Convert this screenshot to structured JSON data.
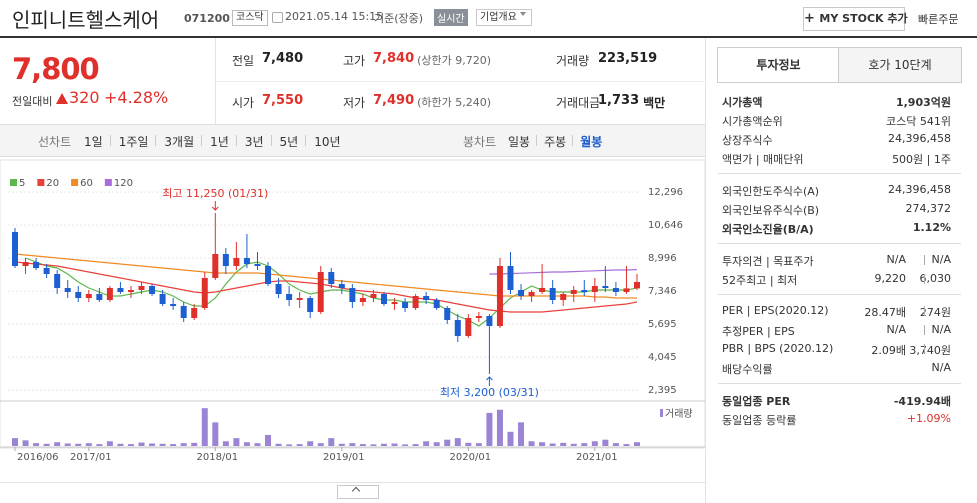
{
  "header": {
    "name": "인피니트헬스케어",
    "code": "071200",
    "market": "코스닥",
    "datetime": "2021.05.14 15:15",
    "basis": "기준(장중)",
    "realtime": "실시간",
    "company_info": "기업개요",
    "my_stock": "MY STOCK 추가",
    "quick_order": "빠른주문"
  },
  "quote": {
    "price": "7,800",
    "change_label": "전일대비",
    "change": "320",
    "change_rate": "+4.28%"
  },
  "summary": [
    {
      "label": "전일",
      "value": "7,480"
    },
    {
      "label": "고가",
      "value": "7,840",
      "note": "(상한가 9,720)"
    },
    {
      "label": "거래량",
      "value": "223,519"
    },
    {
      "label": "시가",
      "value": "7,550"
    },
    {
      "label": "저가",
      "value": "7,490",
      "note": "(하한가 5,240)"
    },
    {
      "label": "거래대금",
      "value": "1,733",
      "unit": "백만"
    }
  ],
  "toolbar": {
    "line_label": "선차트",
    "line_periods": [
      "1일",
      "1주일",
      "3개월",
      "1년",
      "3년",
      "5년",
      "10년"
    ],
    "candle_label": "봉차트",
    "candle_periods": [
      "일봉",
      "주봉",
      "월봉"
    ]
  },
  "side": {
    "tabs": [
      "투자정보",
      "호가 10단계"
    ],
    "groups": [
      [
        {
          "label": "시가총액",
          "values": [
            "1,903억원"
          ]
        },
        {
          "label": "시가총액순위",
          "values": [
            "코스닥 541위"
          ]
        },
        {
          "label": "상장주식수",
          "values": [
            "24,396,458"
          ]
        },
        {
          "label": "액면가 | 매매단위",
          "values": [
            "500원 | 1주"
          ]
        }
      ],
      [
        {
          "label": "외국인한도주식수(A)",
          "values": [
            "24,396,458"
          ]
        },
        {
          "label": "외국인보유주식수(B)",
          "values": [
            "274,372"
          ]
        },
        {
          "label": "외국인소진율(B/A)",
          "values": [
            "1.12%"
          ]
        }
      ],
      [
        {
          "label": "투자의견 | 목표주가",
          "values": [
            "N/A",
            "N/A"
          ]
        },
        {
          "label": "52주최고 | 최저",
          "values": [
            "9,220",
            "6,030"
          ]
        }
      ],
      [
        {
          "label": "PER | EPS(2020.12)",
          "values": [
            "28.47배",
            "274원"
          ]
        },
        {
          "label": "추정PER | EPS",
          "values": [
            "N/A",
            "N/A"
          ]
        },
        {
          "label": "PBR | BPS (2020.12)",
          "values": [
            "2.09배",
            "3,740원"
          ]
        },
        {
          "label": "배당수익률",
          "values": [
            "N/A"
          ]
        }
      ],
      [
        {
          "label": "동일업종 PER",
          "values": [
            "-419.94배"
          ]
        },
        {
          "label": "동일업종 등락률",
          "values": [
            "+1.09%"
          ]
        }
      ]
    ]
  },
  "chart_data": {
    "type": "candlestick",
    "categories": [
      "2016/06",
      null,
      null,
      null,
      null,
      null,
      null,
      "2017/01",
      null,
      null,
      null,
      null,
      null,
      null,
      null,
      null,
      null,
      null,
      null,
      "2018/01",
      null,
      null,
      null,
      null,
      null,
      null,
      null,
      null,
      null,
      null,
      null,
      "2019/01",
      null,
      null,
      null,
      null,
      null,
      null,
      null,
      null,
      null,
      null,
      null,
      "2020/01",
      null,
      null,
      null,
      null,
      null,
      null,
      null,
      null,
      null,
      null,
      null,
      "2021/01",
      null,
      null,
      null,
      null
    ],
    "open": [
      10300,
      8600,
      8800,
      8500,
      8200,
      7500,
      7300,
      7000,
      7200,
      6900,
      7500,
      7300,
      7400,
      7600,
      7200,
      6700,
      6600,
      6000,
      6500,
      8000,
      9200,
      8600,
      9000,
      8700,
      8600,
      7700,
      7200,
      6900,
      7000,
      6300,
      8300,
      7700,
      7500,
      6800,
      7000,
      7200,
      6700,
      6800,
      6500,
      7100,
      6900,
      6500,
      5900,
      5100,
      6000,
      6100,
      5600,
      8600,
      7400,
      7100,
      7300,
      7500,
      6900,
      7200,
      7400,
      7300,
      7600,
      7500,
      7300,
      7480
    ],
    "high": [
      10500,
      9000,
      9000,
      8700,
      8400,
      7900,
      7600,
      7400,
      7500,
      7600,
      7800,
      7600,
      7800,
      7700,
      7400,
      7000,
      6800,
      6700,
      8300,
      11250,
      9500,
      9800,
      10200,
      9300,
      8800,
      8000,
      7600,
      7300,
      7100,
      8600,
      8500,
      7900,
      7700,
      7200,
      7400,
      7300,
      7000,
      7000,
      7200,
      7300,
      7000,
      6600,
      6200,
      6200,
      6300,
      6200,
      9000,
      9300,
      7700,
      7400,
      8700,
      7900,
      7300,
      7600,
      7900,
      8000,
      8600,
      7800,
      8600,
      8200
    ],
    "low": [
      8500,
      8200,
      8400,
      8000,
      7200,
      7000,
      6800,
      6800,
      6800,
      6800,
      7200,
      7000,
      7200,
      7100,
      6600,
      6400,
      5800,
      5900,
      6400,
      7900,
      8200,
      8400,
      8500,
      8400,
      7600,
      7000,
      6600,
      6500,
      6000,
      6200,
      7500,
      7200,
      6500,
      6600,
      6800,
      6600,
      6400,
      6300,
      6400,
      6700,
      6400,
      5700,
      4800,
      5000,
      5800,
      3200,
      5500,
      7200,
      6900,
      6800,
      7200,
      6700,
      6600,
      6800,
      7100,
      6800,
      7300,
      7100,
      7200,
      7400
    ],
    "close": [
      8600,
      8800,
      8500,
      8200,
      7500,
      7300,
      7000,
      7200,
      6900,
      7500,
      7300,
      7400,
      7600,
      7200,
      6700,
      6600,
      6000,
      6500,
      8000,
      9200,
      8600,
      9000,
      8700,
      8600,
      7700,
      7200,
      6900,
      7000,
      6300,
      8300,
      7700,
      7500,
      6800,
      7000,
      7200,
      6700,
      6800,
      6500,
      7100,
      6900,
      6500,
      5900,
      5100,
      6000,
      6100,
      5600,
      8600,
      7400,
      7100,
      7300,
      7500,
      6900,
      7200,
      7400,
      7300,
      7600,
      7500,
      7300,
      7480,
      7800
    ],
    "up_color": "#e0302b",
    "down_color": "#1d5fd0",
    "series": [
      {
        "name": "5",
        "color": "#5cb84c",
        "values": [
          null,
          9000,
          8800,
          8600,
          8500,
          8200,
          7800,
          7500,
          7300,
          7100,
          7100,
          7200,
          7300,
          7400,
          7300,
          7100,
          6800,
          6600,
          6600,
          7000,
          7700,
          8300,
          8700,
          8800,
          8600,
          8200,
          7700,
          7400,
          7200,
          7300,
          7400,
          7400,
          7300,
          7200,
          7000,
          6900,
          6900,
          6800,
          6800,
          6800,
          6700,
          6400,
          6100,
          5900,
          5600,
          6000,
          6500,
          7000,
          7300,
          7600,
          7400,
          7300,
          7300,
          7300,
          7300,
          7400,
          7400,
          7400,
          7400,
          7500
        ]
      },
      {
        "name": "20",
        "color": "#e8413b",
        "values": [
          8800,
          8750,
          8700,
          8650,
          8600,
          8500,
          8400,
          8300,
          8200,
          8100,
          8000,
          7900,
          7800,
          7700,
          7600,
          7500,
          7400,
          7300,
          7250,
          7300,
          7400,
          7500,
          7600,
          7700,
          7800,
          7850,
          7850,
          7800,
          7750,
          7700,
          7600,
          7500,
          7400,
          7350,
          7300,
          7250,
          7200,
          7100,
          7000,
          6950,
          6900,
          6800,
          6700,
          6600,
          6500,
          6400,
          6350,
          6300,
          6300,
          6300,
          6300,
          6350,
          6400,
          6450,
          6500,
          6550,
          6600,
          6650,
          6700,
          6800
        ]
      },
      {
        "name": "60",
        "color": "#f08a24",
        "values": [
          9200,
          9150,
          9100,
          9050,
          9000,
          8950,
          8900,
          8850,
          8800,
          8750,
          8700,
          8650,
          8600,
          8550,
          8500,
          8450,
          8400,
          8350,
          8300,
          8250,
          8250,
          8250,
          8250,
          8250,
          8200,
          8150,
          8100,
          8050,
          8000,
          7950,
          7900,
          7850,
          7800,
          7750,
          7700,
          7650,
          7600,
          7550,
          7500,
          7450,
          7400,
          7350,
          7300,
          7250,
          7200,
          7150,
          7100,
          7100,
          7100,
          7100,
          7100,
          7100,
          7100,
          7100,
          7100,
          7050,
          7050,
          7000,
          7000,
          7000
        ]
      },
      {
        "name": "120",
        "color": "#a86ed8",
        "values": [
          null,
          null,
          null,
          null,
          null,
          null,
          null,
          null,
          null,
          null,
          null,
          null,
          null,
          null,
          null,
          null,
          null,
          null,
          null,
          null,
          null,
          null,
          null,
          null,
          null,
          null,
          null,
          null,
          null,
          null,
          null,
          null,
          null,
          null,
          null,
          null,
          null,
          null,
          null,
          null,
          null,
          null,
          null,
          null,
          null,
          8200,
          8200,
          8220,
          8240,
          8260,
          8280,
          8300,
          8300,
          8320,
          8340,
          8360,
          8380,
          8400,
          8400,
          8420
        ]
      }
    ],
    "ylim": [
      2000,
      13900
    ],
    "yticks": [
      {
        "value": 12296,
        "label": "12,296"
      },
      {
        "value": 10646,
        "label": "10,646"
      },
      {
        "value": 8996,
        "label": "8,996"
      },
      {
        "value": 7346,
        "label": "7,346"
      },
      {
        "value": 5695,
        "label": "5,695"
      },
      {
        "value": 4045,
        "label": "4,045"
      },
      {
        "value": 2395,
        "label": "2,395"
      }
    ],
    "grid": true,
    "annotations": {
      "high": "최고 11,250 (01/31)",
      "low": "최저 3,200 (03/31)"
    },
    "volume": {
      "name": "거래량",
      "color": "#9c84d4",
      "ylim": [
        0,
        13000000
      ],
      "values": [
        2500000,
        1800000,
        900000,
        700000,
        1200000,
        800000,
        700000,
        900000,
        600000,
        1500000,
        700000,
        600000,
        1100000,
        800000,
        700000,
        600000,
        900000,
        1000000,
        12000000,
        7500000,
        1500000,
        2500000,
        1200000,
        900000,
        3500000,
        700000,
        500000,
        600000,
        1500000,
        900000,
        2500000,
        700000,
        900000,
        600000,
        500000,
        700000,
        800000,
        500000,
        600000,
        1500000,
        1200000,
        2000000,
        2500000,
        1000000,
        900000,
        10500000,
        11500000,
        4500000,
        7500000,
        1500000,
        1200000,
        800000,
        1000000,
        700000,
        900000,
        1500000,
        2000000,
        900000,
        600000,
        1200000
      ]
    }
  }
}
